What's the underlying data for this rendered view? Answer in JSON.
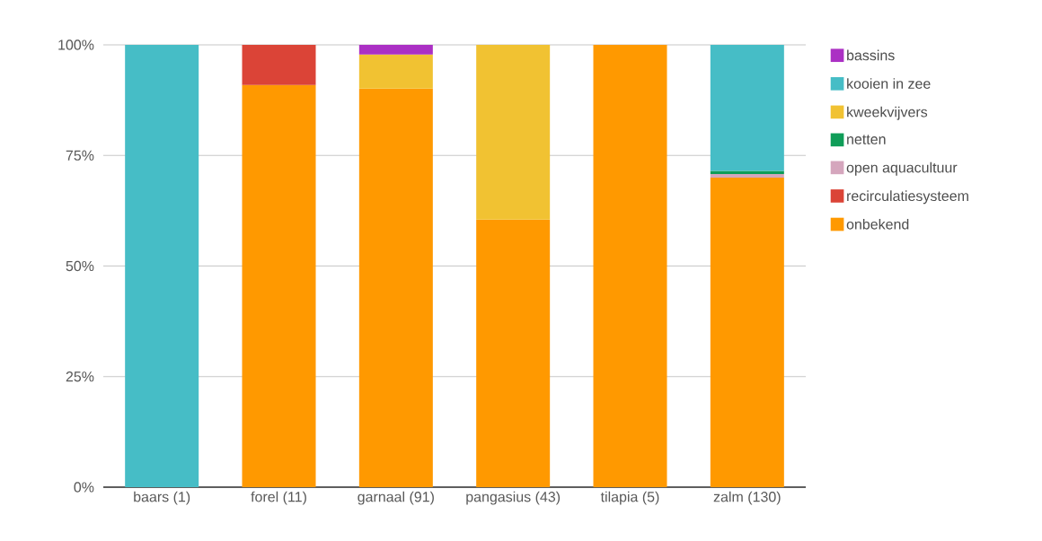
{
  "chart_data": {
    "type": "bar",
    "stacked": true,
    "categories": [
      "baars (1)",
      "forel (11)",
      "garnaal (91)",
      "pangasius (43)",
      "tilapia (5)",
      "zalm (130)"
    ],
    "series": [
      {
        "name": "onbekend",
        "color": "#ff9900",
        "values": [
          null,
          90.9,
          90.1,
          60.5,
          100,
          70
        ]
      },
      {
        "name": "recirculatiesysteem",
        "color": "#db4437",
        "values": [
          null,
          9.1,
          null,
          null,
          null,
          null
        ]
      },
      {
        "name": "open aquacultuur",
        "color": "#d5a6bd",
        "values": [
          null,
          null,
          null,
          null,
          null,
          0.8
        ]
      },
      {
        "name": "netten",
        "color": "#0f9d58",
        "values": [
          null,
          null,
          null,
          null,
          null,
          0.7
        ]
      },
      {
        "name": "kweekvijvers",
        "color": "#f1c232",
        "values": [
          null,
          null,
          7.7,
          39.5,
          null,
          null
        ]
      },
      {
        "name": "kooien in zee",
        "color": "#46bdc6",
        "values": [
          100,
          null,
          null,
          null,
          null,
          28.5
        ]
      },
      {
        "name": "bassins",
        "color": "#ab30c4",
        "values": [
          null,
          null,
          2.2,
          null,
          null,
          null
        ]
      }
    ],
    "ylim": [
      0,
      100
    ],
    "yticks": [
      {
        "value": 0,
        "label": "0%"
      },
      {
        "value": 25,
        "label": "25%"
      },
      {
        "value": 50,
        "label": "50%"
      },
      {
        "value": 75,
        "label": "75%"
      },
      {
        "value": 100,
        "label": "100%"
      }
    ],
    "grid": "y",
    "legend": "top right"
  }
}
